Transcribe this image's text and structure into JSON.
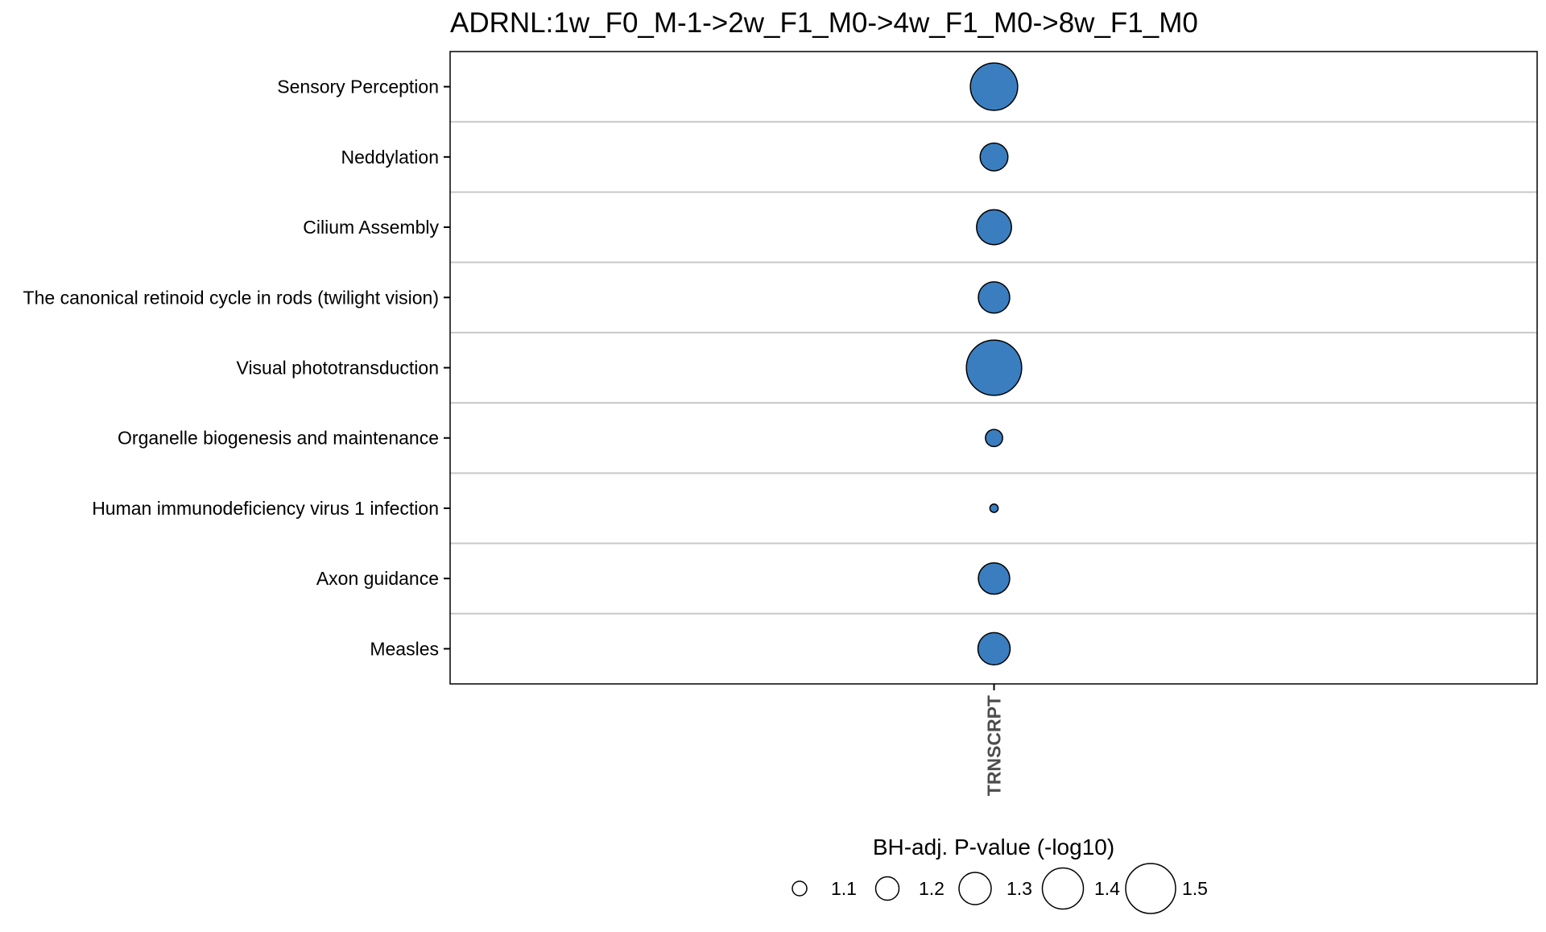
{
  "chart_data": {
    "type": "scatter",
    "title": "ADRNL:1w_F0_M-1->2w_F1_M0->4w_F1_M0->8w_F1_M0",
    "x_categories": [
      "TRNSCRPT"
    ],
    "y_categories": [
      "Sensory Perception",
      "Neddylation",
      "Cilium Assembly",
      "The canonical retinoid cycle in rods (twilight vision)",
      "Visual phototransduction",
      "Organelle biogenesis and maintenance",
      "Human immunodeficiency virus 1 infection",
      "Axon guidance",
      "Measles"
    ],
    "points": [
      {
        "y": "Sensory Perception",
        "x": "TRNSCRPT",
        "size_value": 1.47
      },
      {
        "y": "Neddylation",
        "x": "TRNSCRPT",
        "size_value": 1.25
      },
      {
        "y": "Cilium Assembly",
        "x": "TRNSCRPT",
        "size_value": 1.33
      },
      {
        "y": "The canonical retinoid cycle in rods (twilight vision)",
        "x": "TRNSCRPT",
        "size_value": 1.29
      },
      {
        "y": "Visual phototransduction",
        "x": "TRNSCRPT",
        "size_value": 1.56
      },
      {
        "y": "Organelle biogenesis and maintenance",
        "x": "TRNSCRPT",
        "size_value": 1.13
      },
      {
        "y": "Human immunodeficiency virus 1 infection",
        "x": "TRNSCRPT",
        "size_value": 1.03
      },
      {
        "y": "Axon guidance",
        "x": "TRNSCRPT",
        "size_value": 1.29
      },
      {
        "y": "Measles",
        "x": "TRNSCRPT",
        "size_value": 1.3
      }
    ],
    "point_color": "#3a7ebf",
    "legend": {
      "title": "BH-adj. P-value (-log10)",
      "values": [
        1.1,
        1.2,
        1.3,
        1.4,
        1.5
      ],
      "labels": [
        "1.1",
        "1.2",
        "1.3",
        "1.4",
        "1.5"
      ],
      "placement": "bottom"
    },
    "grid": "horizontal"
  }
}
